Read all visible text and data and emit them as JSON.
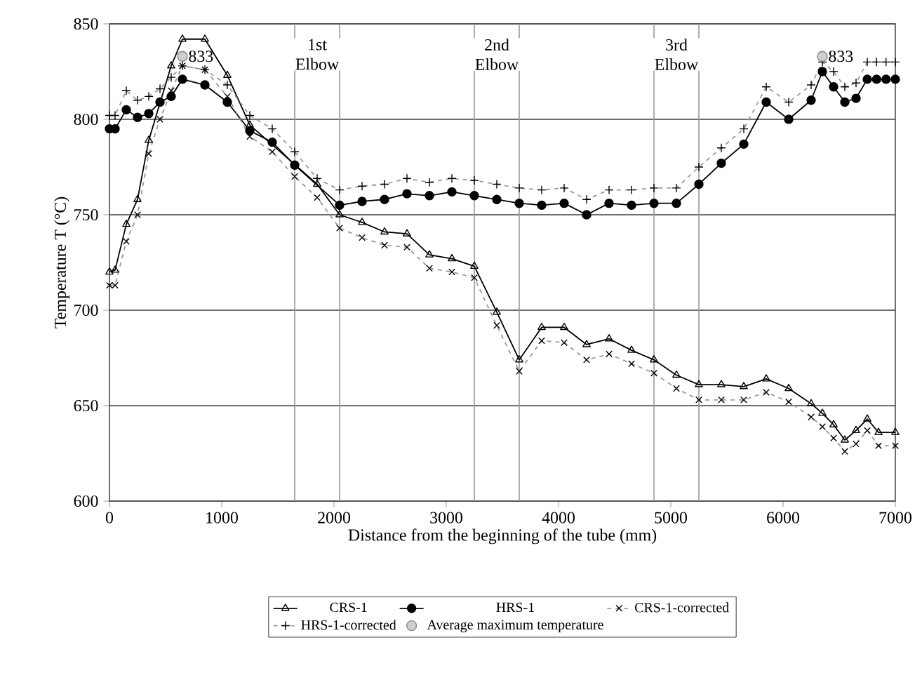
{
  "chart_data": {
    "type": "line",
    "xlabel": "Distance from the beginning of the tube (mm)",
    "ylabel": "Temperature T (°C)",
    "xlim": [
      0,
      7000
    ],
    "ylim": [
      600,
      850
    ],
    "xticks": [
      0,
      1000,
      2000,
      3000,
      4000,
      5000,
      6000,
      7000
    ],
    "yticks": [
      600,
      650,
      700,
      750,
      800,
      850
    ],
    "grid": "y",
    "legend": "bottom",
    "series": [
      {
        "name": "CRS-1",
        "color": "#000000",
        "marker": "triangle",
        "line_style": "solid",
        "x": [
          0,
          50,
          150,
          250,
          350,
          450,
          550,
          650,
          850,
          1050,
          1250,
          1450,
          1650,
          1850,
          2050,
          2250,
          2450,
          2650,
          2850,
          3050,
          3250,
          3450,
          3650,
          3850,
          4050,
          4250,
          4450,
          4650,
          4850,
          5050,
          5250,
          5450,
          5650,
          5850,
          6050,
          6250,
          6350,
          6450,
          6550,
          6650,
          6750,
          6850,
          7000
        ],
        "values": [
          720,
          721,
          745,
          758,
          789,
          null,
          828,
          842,
          842,
          823,
          797,
          null,
          null,
          766,
          750,
          746,
          741,
          740,
          729,
          727,
          723,
          699,
          674,
          691,
          691,
          682,
          685,
          679,
          674,
          666,
          661,
          661,
          660,
          664,
          659,
          651,
          646,
          640,
          632,
          637,
          643,
          636,
          636
        ]
      },
      {
        "name": "HRS-1",
        "color": "#000000",
        "marker": "circle",
        "line_style": "solid",
        "x": [
          0,
          50,
          150,
          250,
          350,
          450,
          550,
          650,
          850,
          1050,
          1250,
          1450,
          1650,
          1850,
          2050,
          2250,
          2450,
          2650,
          2850,
          3050,
          3250,
          3450,
          3650,
          3850,
          4050,
          4250,
          4450,
          4650,
          4850,
          5050,
          5250,
          5450,
          5650,
          5850,
          6050,
          6250,
          6350,
          6450,
          6550,
          6650,
          6750,
          6833,
          6917,
          7000
        ],
        "values": [
          795,
          795,
          805,
          801,
          803,
          809,
          812,
          821,
          818,
          809,
          794,
          788,
          776,
          null,
          755,
          757,
          758,
          761,
          760,
          762,
          760,
          758,
          756,
          755,
          756,
          750,
          756,
          755,
          756,
          756,
          766,
          777,
          787,
          809,
          800,
          810,
          825,
          817,
          809,
          811,
          821,
          821,
          821,
          821
        ]
      },
      {
        "name": "CRS-1-corrected",
        "color": "#9a9a9a",
        "marker": "cross",
        "line_style": "dashed",
        "x": [
          0,
          50,
          150,
          250,
          350,
          450,
          550,
          650,
          850,
          1050,
          1250,
          1450,
          1650,
          1850,
          2050,
          2250,
          2450,
          2650,
          2850,
          3050,
          3250,
          3450,
          3650,
          3850,
          4050,
          4250,
          4450,
          4650,
          4850,
          5050,
          5250,
          5450,
          5650,
          5850,
          6050,
          6250,
          6350,
          6450,
          6550,
          6650,
          6750,
          6850,
          7000
        ],
        "values": [
          713,
          713,
          736,
          750,
          782,
          800,
          815,
          828,
          826,
          812,
          791,
          783,
          770,
          759,
          743,
          738,
          734,
          733,
          722,
          720,
          717,
          692,
          668,
          684,
          683,
          674,
          677,
          672,
          667,
          659,
          653,
          653,
          653,
          657,
          652,
          644,
          639,
          633,
          626,
          630,
          637,
          629,
          629
        ]
      },
      {
        "name": "HRS-1-corrected",
        "color": "#9a9a9a",
        "marker": "plus",
        "line_style": "dashed",
        "x": [
          0,
          50,
          150,
          250,
          350,
          450,
          550,
          650,
          850,
          1050,
          1250,
          1450,
          1650,
          1850,
          2050,
          2250,
          2450,
          2650,
          2850,
          3050,
          3250,
          3450,
          3650,
          3850,
          4050,
          4250,
          4450,
          4650,
          4850,
          5050,
          5250,
          5450,
          5650,
          5850,
          6050,
          6250,
          6350,
          6450,
          6550,
          6650,
          6750,
          6833,
          6917,
          7000
        ],
        "values": [
          802,
          802,
          815,
          810,
          812,
          816,
          822,
          828,
          826,
          818,
          802,
          795,
          783,
          769,
          763,
          765,
          766,
          769,
          767,
          769,
          768,
          766,
          764,
          763,
          764,
          758,
          763,
          763,
          764,
          764,
          775,
          785,
          795,
          817,
          809,
          818,
          830,
          825,
          817,
          819,
          830,
          830,
          830,
          830
        ]
      },
      {
        "name": "Average maximum temperature",
        "type": "scatter",
        "color": "#888888",
        "marker": "circle",
        "x": [
          650,
          6350
        ],
        "values": [
          833,
          833
        ],
        "value_labels": [
          "833",
          "833"
        ]
      }
    ],
    "ref_lines": [
      {
        "axis": "x",
        "value": 1650,
        "color": "#999999"
      },
      {
        "axis": "x",
        "value": 2050,
        "color": "#999999"
      },
      {
        "axis": "x",
        "value": 3250,
        "color": "#999999"
      },
      {
        "axis": "x",
        "value": 3650,
        "color": "#999999"
      },
      {
        "axis": "x",
        "value": 4850,
        "color": "#999999"
      },
      {
        "axis": "x",
        "value": 5250,
        "color": "#999999"
      }
    ],
    "annotations": [
      {
        "text": "1st Elbow",
        "x": 1850,
        "y": 834
      },
      {
        "text": "2nd Elbow",
        "x": 3450,
        "y": 834
      },
      {
        "text": "3rd Elbow",
        "x": 5050,
        "y": 834
      }
    ]
  }
}
